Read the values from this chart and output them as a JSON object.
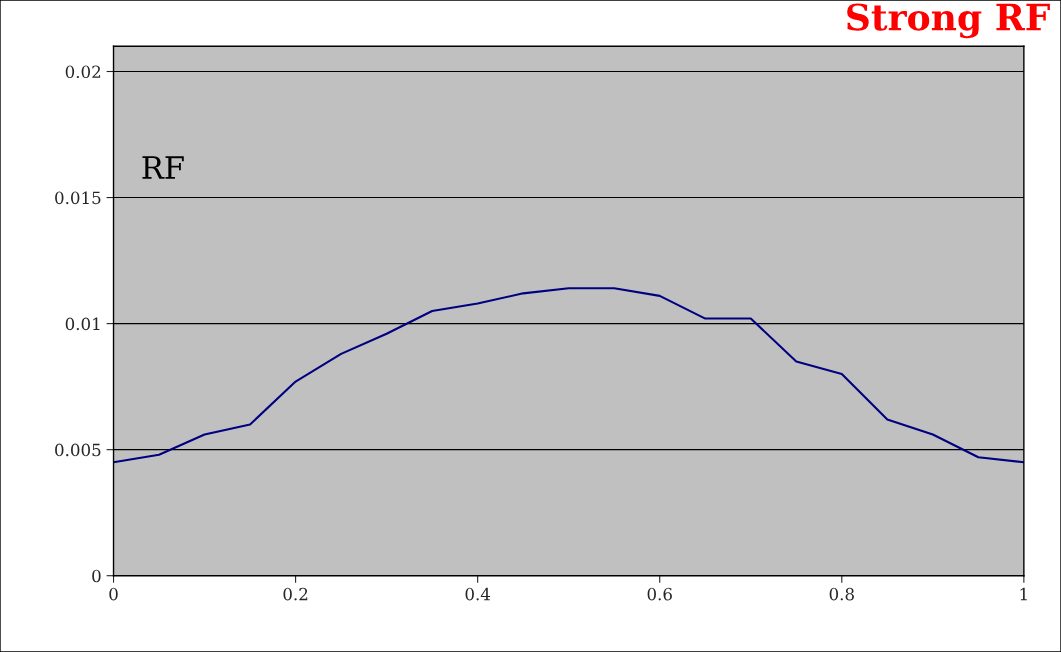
{
  "chart_data": {
    "type": "line",
    "title": "Strong RF",
    "annotations": [
      "RF"
    ],
    "x": [
      0,
      0.05,
      0.1,
      0.15,
      0.2,
      0.25,
      0.3,
      0.35,
      0.4,
      0.45,
      0.5,
      0.55,
      0.6,
      0.65,
      0.7,
      0.75,
      0.8,
      0.85,
      0.9,
      0.95,
      1
    ],
    "series": [
      {
        "color": "#000080",
        "values": [
          0.0045,
          0.0048,
          0.0056,
          0.006,
          0.0077,
          0.0088,
          0.0096,
          0.0105,
          0.0108,
          0.0112,
          0.0114,
          0.0114,
          0.0111,
          0.0102,
          0.0102,
          0.0085,
          0.008,
          0.0062,
          0.0056,
          0.0047,
          0.0045
        ]
      }
    ],
    "xlim": [
      0,
      1
    ],
    "ylim": [
      0,
      0.021
    ],
    "xticks": [
      0,
      0.2,
      0.4,
      0.6,
      0.8,
      1
    ],
    "yticks": [
      0,
      0.005,
      0.01,
      0.015,
      0.02
    ],
    "grid": "y",
    "legend": false,
    "marker": "none",
    "line_style": "solid"
  }
}
